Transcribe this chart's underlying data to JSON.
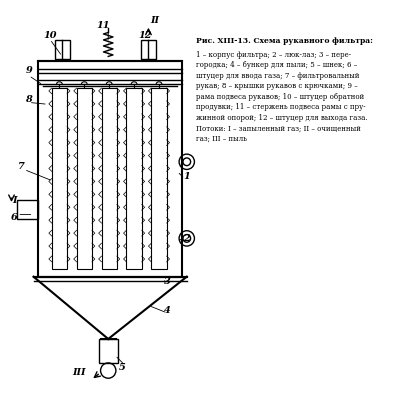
{
  "title": "Рис. XIII-13. Схема рукавного фильтра:",
  "description_lines": [
    "1 – корпус фильтра; 2 – люк-лаз; 3 – пере-",
    "городка; 4 – бункер для пыли; 5 – шнек; 6 –",
    "штуцер для ввода газа; 7 – фильтровальный",
    "рукав; 8 – крышки рукавов с крючками; 9 –",
    "рама подвеса рукавов; 10 – штуцер обратной",
    "продувки; 11 – стержень подвеса рамы с пру-",
    "жинной опорой; 12 – штуцер для выхода газа.",
    "Потоки: I – запыленный газ; II – очищенный",
    "газ; III – пыль"
  ],
  "bg_color": "#ffffff",
  "line_color": "#000000"
}
